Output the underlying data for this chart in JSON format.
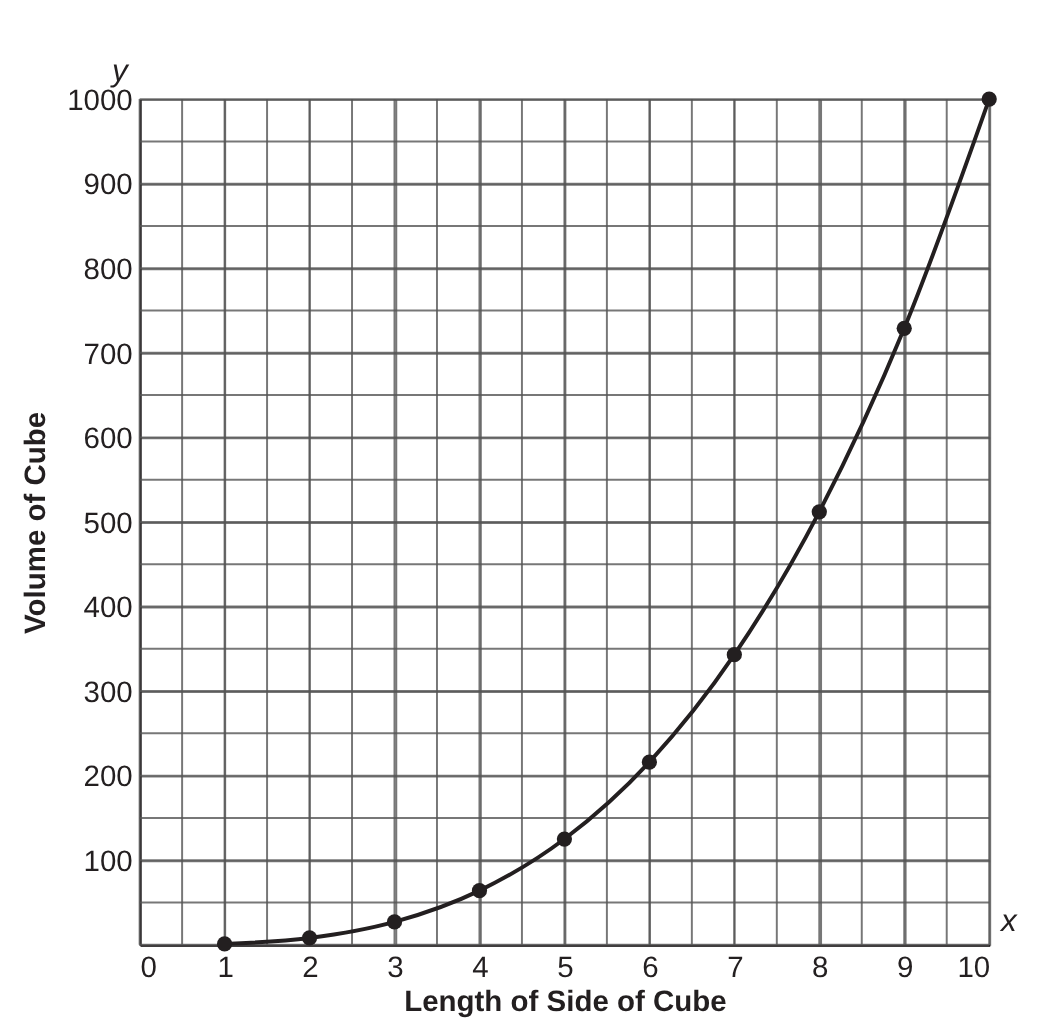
{
  "chart_data": {
    "type": "line",
    "xlabel": "Length of Side of Cube",
    "ylabel": "Volume of Cube",
    "x": [
      1,
      2,
      3,
      4,
      5,
      6,
      7,
      8,
      9,
      10
    ],
    "series": [
      {
        "color": "#231f20",
        "values": [
          1,
          8,
          27,
          64,
          125,
          216,
          343,
          512,
          729,
          1000
        ]
      }
    ],
    "xlim": [
      0,
      10
    ],
    "ylim": [
      0,
      1000
    ],
    "xticks": [
      0,
      {
        "value": 0.5,
        "label": null
      },
      1,
      {
        "value": 1.5,
        "label": null
      },
      2,
      {
        "value": 2.5,
        "label": null
      },
      3,
      {
        "value": 3.5,
        "label": null
      },
      4,
      {
        "value": 4.5,
        "label": null
      },
      5,
      {
        "value": 5.5,
        "label": null
      },
      6,
      {
        "value": 6.5,
        "label": null
      },
      7,
      {
        "value": 7.5,
        "label": null
      },
      8,
      {
        "value": 8.5,
        "label": null
      },
      9,
      {
        "value": 9.5,
        "label": null
      },
      10
    ],
    "yticks": [
      {
        "value": 0,
        "label": null
      },
      {
        "value": 50,
        "label": null
      },
      100,
      {
        "value": 150,
        "label": null
      },
      200,
      {
        "value": 250,
        "label": null
      },
      300,
      {
        "value": 350,
        "label": null
      },
      400,
      {
        "value": 450,
        "label": null
      },
      500,
      {
        "value": 550,
        "label": null
      },
      600,
      {
        "value": 650,
        "label": null
      },
      700,
      {
        "value": 750,
        "label": null
      },
      800,
      {
        "value": 850,
        "label": null
      },
      900,
      {
        "value": 950,
        "label": null
      },
      1000
    ],
    "grid": true,
    "marker": "circle",
    "line_style": "solid",
    "annotations": [
      "x",
      "y"
    ]
  }
}
